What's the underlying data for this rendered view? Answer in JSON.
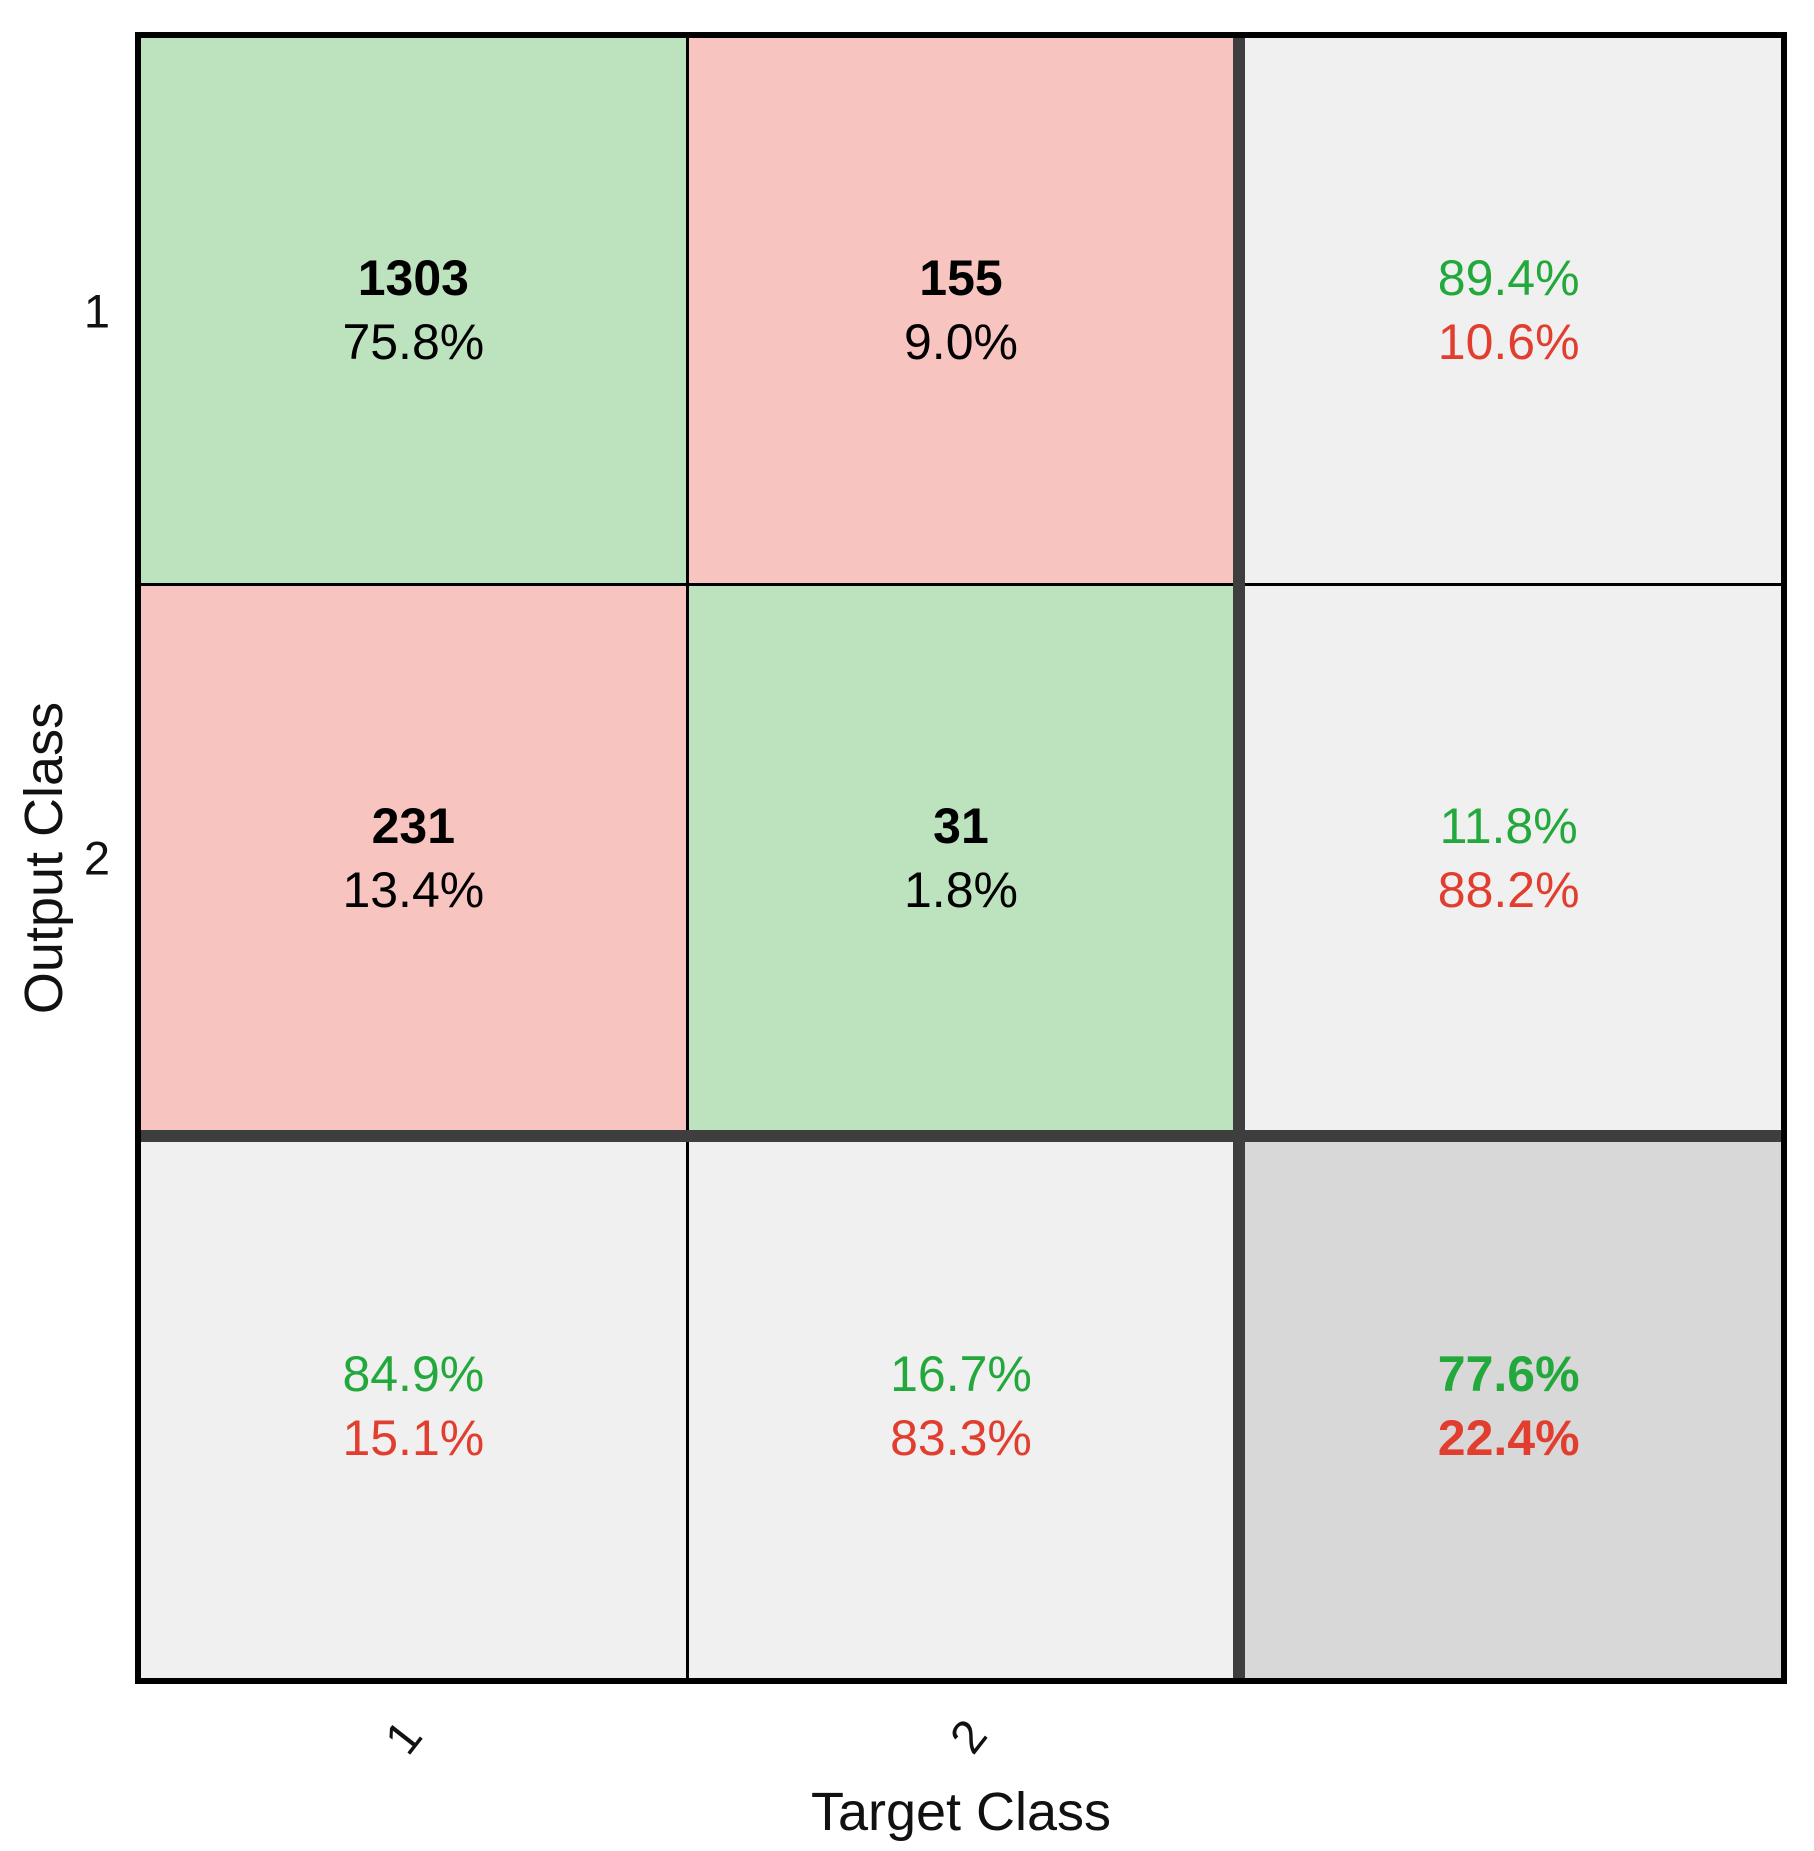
{
  "chart_data": {
    "type": "heatmap",
    "subtype": "confusion_matrix",
    "xlabel": "Target Class",
    "ylabel": "Output Class",
    "x_tick_labels": [
      "1",
      "2"
    ],
    "y_tick_labels": [
      "1",
      "2"
    ],
    "counts": [
      [
        "1303",
        "155"
      ],
      [
        "231",
        "31"
      ]
    ],
    "count_pcts": [
      [
        "75.8%",
        "9.0%"
      ],
      [
        "13.4%",
        "1.8%"
      ]
    ],
    "row_summary": [
      {
        "green": "89.4%",
        "red": "10.6%"
      },
      {
        "green": "11.8%",
        "red": "88.2%"
      }
    ],
    "col_summary": [
      {
        "green": "84.9%",
        "red": "15.1%"
      },
      {
        "green": "16.7%",
        "red": "83.3%"
      }
    ],
    "overall": {
      "green": "77.6%",
      "red": "22.4%"
    },
    "layout": {
      "grid": "3x3 equal cells, summary row and column separated by thick dark lines",
      "legend_position": "none",
      "gridlines": "black thin cell borders"
    },
    "colors": {
      "correct_cell": "#BCE3BD",
      "incorrect_cell": "#F8C4C0",
      "summary_cell": "#F0F0F0",
      "total_cell": "#D8D8D8",
      "positive_text": "#23A83C",
      "negative_text": "#E23E30",
      "separator": "#3E3E3E"
    }
  }
}
